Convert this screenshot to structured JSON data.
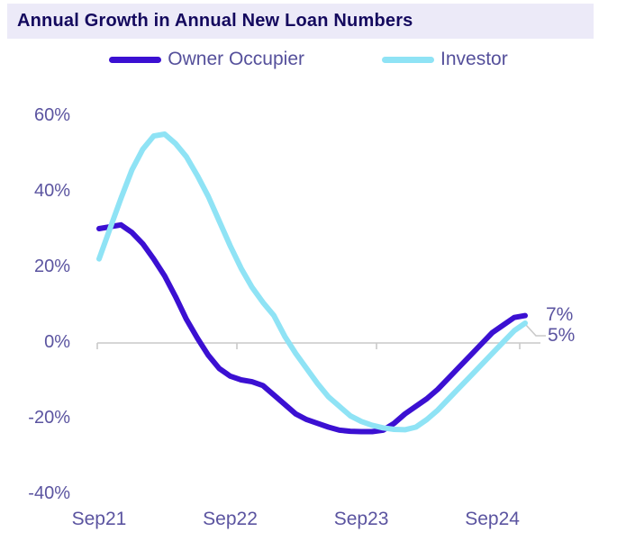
{
  "title": "Annual Growth in Annual New Loan Numbers",
  "legend": {
    "items": [
      {
        "label": "Owner Occupier",
        "color": "#3B10D2"
      },
      {
        "label": "Investor",
        "color": "#8FE3F5"
      }
    ]
  },
  "colors": {
    "title_text": "#14095E",
    "title_bar_bg": "#ECEAF8",
    "axis_label": "#5B54A0",
    "axis_line": "#C9C9C9",
    "owner_occupier": "#3B10D2",
    "investor": "#8FE3F5"
  },
  "chart_data": {
    "type": "line",
    "title": "Annual Growth in Annual New Loan Numbers",
    "xlabel": "",
    "ylabel": "",
    "grid": false,
    "legend_position": "top",
    "ylim": [
      -40,
      60
    ],
    "yticks": [
      {
        "label": "60%",
        "value": 60
      },
      {
        "label": "40%",
        "value": 40
      },
      {
        "label": "20%",
        "value": 20
      },
      {
        "label": "0%",
        "value": 0
      },
      {
        "label": "-20%",
        "value": -20
      },
      {
        "label": "-40%",
        "value": -40
      }
    ],
    "x": [
      "Sep21",
      "Oct21",
      "Nov21",
      "Dec21",
      "Jan22",
      "Feb22",
      "Mar22",
      "Apr22",
      "May22",
      "Jun22",
      "Jul22",
      "Aug22",
      "Sep22",
      "Oct22",
      "Nov22",
      "Dec22",
      "Jan23",
      "Feb23",
      "Mar23",
      "Apr23",
      "May23",
      "Jun23",
      "Jul23",
      "Aug23",
      "Sep23",
      "Oct23",
      "Nov23",
      "Dec23",
      "Jan24",
      "Feb24",
      "Mar24",
      "Apr24",
      "May24",
      "Jun24",
      "Jul24",
      "Aug24",
      "Sep24",
      "Oct24",
      "Nov24",
      "Dec24"
    ],
    "xticks_shown": [
      {
        "label": "Sep21",
        "x_index": 0
      },
      {
        "label": "Sep22",
        "x_index": 12
      },
      {
        "label": "Sep23",
        "x_index": 24
      },
      {
        "label": "Sep24",
        "x_index": 36
      }
    ],
    "series": [
      {
        "name": "Owner Occupier",
        "color": "#3B10D2",
        "values": [
          30,
          30.5,
          31,
          29,
          26,
          22,
          17.5,
          12,
          6,
          1,
          -3.5,
          -7,
          -9,
          -10,
          -10.5,
          -11.5,
          -14,
          -16.5,
          -19,
          -20.5,
          -21.5,
          -22.5,
          -23.3,
          -23.6,
          -23.7,
          -23.7,
          -23.3,
          -21.5,
          -19,
          -17,
          -15,
          -12.5,
          -9.5,
          -6.5,
          -3.5,
          -0.5,
          2.5,
          4.5,
          6.5,
          7
        ]
      },
      {
        "name": "Investor",
        "color": "#8FE3F5",
        "values": [
          22,
          30,
          38,
          45.5,
          51,
          54.5,
          55,
          52.5,
          49,
          44,
          38.5,
          32,
          25.5,
          19.5,
          14.5,
          10.5,
          7,
          1.5,
          -3,
          -7,
          -11,
          -14.5,
          -17,
          -19.5,
          -21,
          -22,
          -22.7,
          -23.1,
          -23.2,
          -22.5,
          -20.5,
          -18,
          -15,
          -12,
          -9,
          -6,
          -3,
          0,
          3,
          5
        ]
      }
    ],
    "annotations": [
      {
        "text": "7%",
        "series": "Owner Occupier",
        "value": 7
      },
      {
        "text": "5%",
        "series": "Investor",
        "value": 5
      }
    ]
  }
}
